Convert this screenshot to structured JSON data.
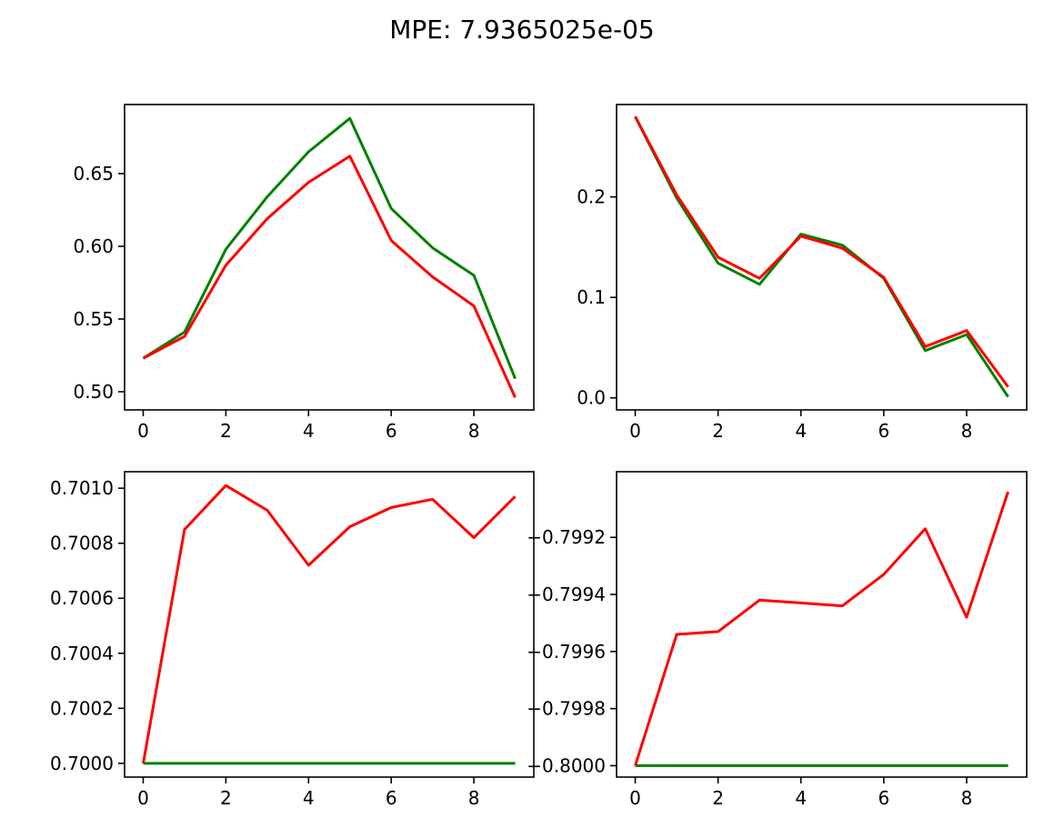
{
  "figure": {
    "suptitle": "MPE: 7.9365025e-05"
  },
  "colors": {
    "truth": "#008000",
    "prediction": "#ff0000"
  },
  "chart_data": [
    {
      "type": "line",
      "x": [
        0,
        1,
        2,
        3,
        4,
        5,
        6,
        7,
        8,
        9
      ],
      "xlim": [
        -0.45,
        9.45
      ],
      "ylim": [
        0.4875,
        0.6975
      ],
      "xticks": [
        0,
        2,
        4,
        6,
        8
      ],
      "yticks": [
        0.5,
        0.55,
        0.6,
        0.65
      ],
      "ytick_labels": [
        "0.50",
        "0.55",
        "0.60",
        "0.65"
      ],
      "series": [
        {
          "color": "#008000",
          "values": [
            0.523,
            0.541,
            0.598,
            0.634,
            0.665,
            0.688,
            0.626,
            0.599,
            0.58,
            0.509
          ]
        },
        {
          "color": "#ff0000",
          "values": [
            0.523,
            0.538,
            0.587,
            0.619,
            0.644,
            0.662,
            0.604,
            0.579,
            0.559,
            0.496
          ]
        }
      ]
    },
    {
      "type": "line",
      "x": [
        0,
        1,
        2,
        3,
        4,
        5,
        6,
        7,
        8,
        9
      ],
      "xlim": [
        -0.45,
        9.45
      ],
      "ylim": [
        -0.012,
        0.292
      ],
      "xticks": [
        0,
        2,
        4,
        6,
        8
      ],
      "yticks": [
        0.0,
        0.1,
        0.2
      ],
      "ytick_labels": [
        "0.0",
        "0.1",
        "0.2"
      ],
      "series": [
        {
          "color": "#008000",
          "values": [
            0.28,
            0.199,
            0.134,
            0.113,
            0.163,
            0.152,
            0.119,
            0.047,
            0.063,
            0.001
          ]
        },
        {
          "color": "#ff0000",
          "values": [
            0.28,
            0.202,
            0.14,
            0.119,
            0.161,
            0.149,
            0.12,
            0.051,
            0.067,
            0.011
          ]
        }
      ]
    },
    {
      "type": "line",
      "x": [
        0,
        1,
        2,
        3,
        4,
        5,
        6,
        7,
        8,
        9
      ],
      "xlim": [
        -0.45,
        9.45
      ],
      "ylim": [
        0.69995,
        1.00105
      ],
      "ylim_note": "",
      "xticks": [
        0,
        2,
        4,
        6,
        8
      ],
      "yticks": [
        0.7,
        0.7002,
        0.7004,
        0.7006,
        0.7008,
        0.701
      ],
      "ytick_labels": [
        "0.7000",
        "0.7002",
        "0.7004",
        "0.7006",
        "0.7008",
        "0.7010"
      ],
      "series": [
        {
          "color": "#008000",
          "values": [
            0.7,
            0.7,
            0.7,
            0.7,
            0.7,
            0.7,
            0.7,
            0.7,
            0.7,
            0.7
          ]
        },
        {
          "color": "#ff0000",
          "values": [
            0.7,
            0.70085,
            0.70101,
            0.70092,
            0.70072,
            0.70086,
            0.70093,
            0.70096,
            0.70082,
            0.70097
          ]
        }
      ]
    },
    {
      "type": "line",
      "x": [
        0,
        1,
        2,
        3,
        4,
        5,
        6,
        7,
        8,
        9
      ],
      "xlim": [
        -0.45,
        9.45
      ],
      "ylim": [
        -0.80004,
        -0.79897
      ],
      "xticks": [
        0,
        2,
        4,
        6,
        8
      ],
      "yticks": [
        -0.8,
        -0.7998,
        -0.7996,
        -0.7994,
        -0.7992
      ],
      "ytick_labels": [
        "−0.8000",
        "−0.7998",
        "−0.7996",
        "−0.7994",
        "−0.7992"
      ],
      "series": [
        {
          "color": "#008000",
          "values": [
            -0.8,
            -0.8,
            -0.8,
            -0.8,
            -0.8,
            -0.8,
            -0.8,
            -0.8,
            -0.8,
            -0.8
          ]
        },
        {
          "color": "#ff0000",
          "values": [
            -0.8,
            -0.79954,
            -0.79953,
            -0.79942,
            -0.79943,
            -0.79944,
            -0.79933,
            -0.79917,
            -0.79948,
            -0.79904
          ]
        }
      ]
    }
  ]
}
